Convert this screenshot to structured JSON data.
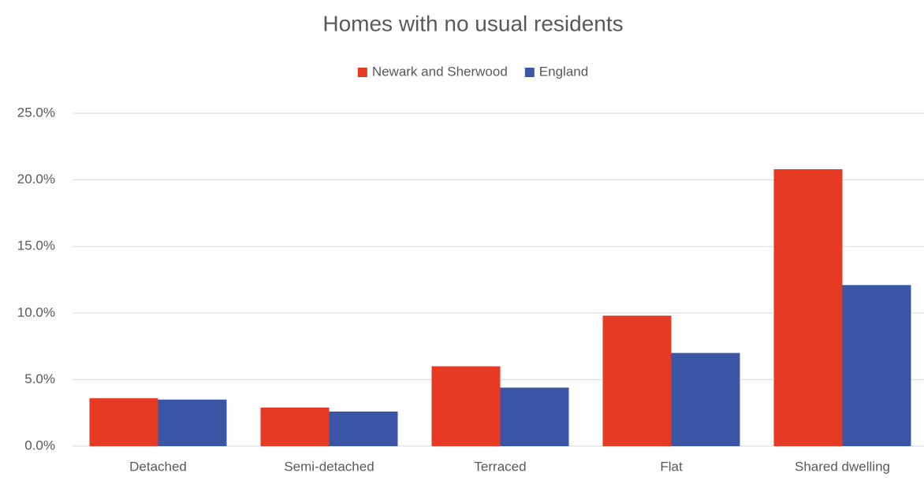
{
  "chart_data": {
    "type": "bar",
    "title": "Homes with no usual residents",
    "categories": [
      "Detached",
      "Semi-detached",
      "Terraced",
      "Flat",
      "Shared dwelling"
    ],
    "series": [
      {
        "name": "Newark and Sherwood",
        "color": "#e63a25",
        "values": [
          3.6,
          2.9,
          6.0,
          9.8,
          20.8
        ]
      },
      {
        "name": "England",
        "color": "#3b56a5",
        "values": [
          3.5,
          2.6,
          4.4,
          7.0,
          12.1
        ]
      }
    ],
    "ylim": [
      0,
      25
    ],
    "yticks": [
      {
        "value": 0,
        "label": "0.0%"
      },
      {
        "value": 5,
        "label": "5.0%"
      },
      {
        "value": 10,
        "label": "10.0%"
      },
      {
        "value": 15,
        "label": "15.0%"
      },
      {
        "value": 20,
        "label": "20.0%"
      },
      {
        "value": 25,
        "label": "25.0%"
      }
    ],
    "grid": true,
    "legend": "top"
  }
}
